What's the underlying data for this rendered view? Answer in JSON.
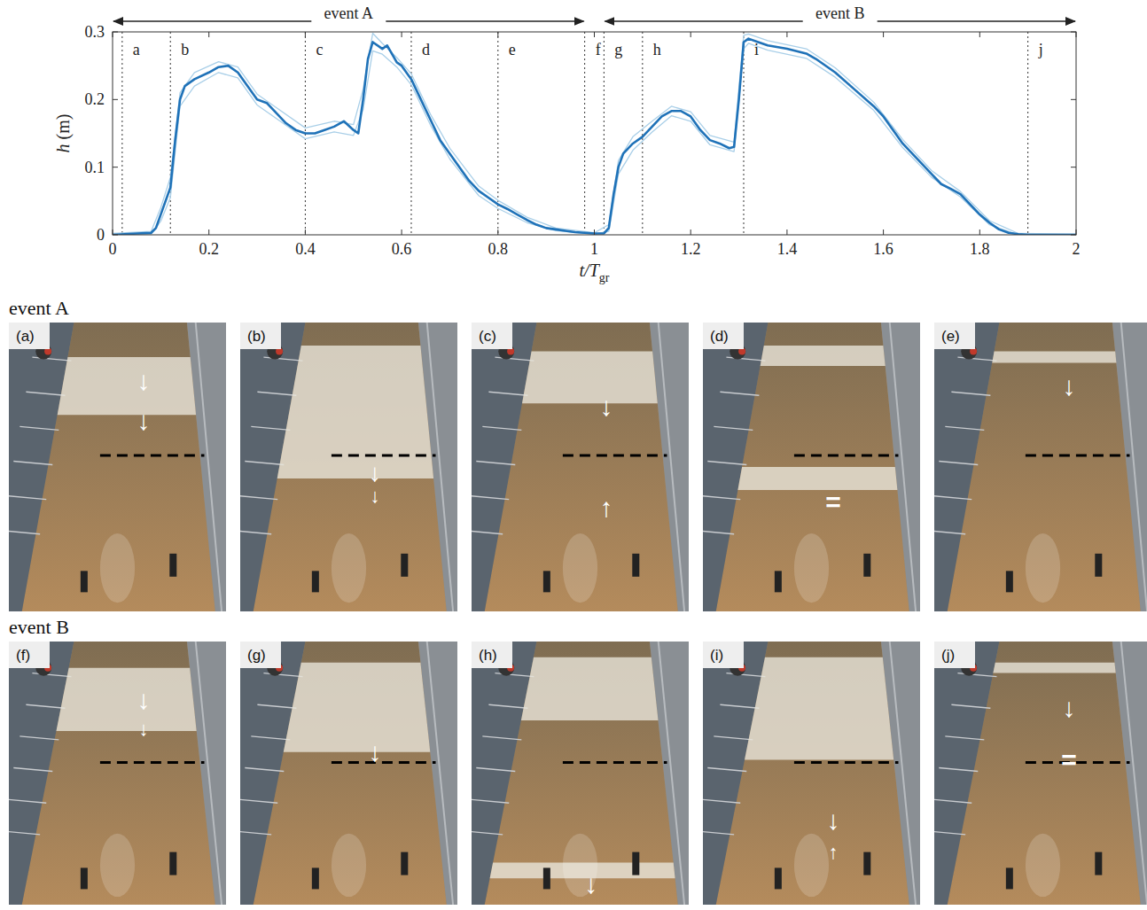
{
  "chart_data": {
    "type": "line",
    "xlabel": {
      "text": "t/T",
      "subscript": "gr"
    },
    "ylabel": "h (m)",
    "xlim": [
      0,
      2
    ],
    "ylim": [
      0,
      0.3
    ],
    "xticks": [
      0,
      0.2,
      0.4,
      0.6,
      0.8,
      1,
      1.2,
      1.4,
      1.6,
      1.8,
      2
    ],
    "yticks": [
      0,
      0.1,
      0.2,
      0.3
    ],
    "grid": false,
    "series": [
      {
        "color": "#a9cfe8",
        "x": [
          0,
          0.08,
          0.1,
          0.12,
          0.14,
          0.17,
          0.22,
          0.26,
          0.3,
          0.34,
          0.4,
          0.46,
          0.5,
          0.52,
          0.54,
          0.56,
          0.59,
          0.62,
          0.66,
          0.7,
          0.76,
          0.8,
          0.86,
          0.92,
          1.0,
          1.03,
          1.05,
          1.08,
          1.12,
          1.16,
          1.2,
          1.24,
          1.29,
          1.31,
          1.32,
          1.36,
          1.44,
          1.5,
          1.58,
          1.64,
          1.7,
          1.76,
          1.82,
          1.88,
          2.0
        ],
        "values": [
          0.002,
          0.005,
          0.04,
          0.085,
          0.21,
          0.24,
          0.256,
          0.248,
          0.208,
          0.188,
          0.158,
          0.168,
          0.163,
          0.215,
          0.298,
          0.283,
          0.262,
          0.238,
          0.178,
          0.128,
          0.072,
          0.051,
          0.026,
          0.01,
          0.003,
          0.015,
          0.11,
          0.145,
          0.168,
          0.19,
          0.182,
          0.147,
          0.137,
          0.295,
          0.297,
          0.287,
          0.275,
          0.247,
          0.196,
          0.141,
          0.095,
          0.064,
          0.021,
          0.002,
          0.001
        ]
      },
      {
        "color": "#a9cfe8",
        "x": [
          0,
          0.08,
          0.1,
          0.12,
          0.14,
          0.17,
          0.22,
          0.26,
          0.3,
          0.34,
          0.4,
          0.46,
          0.5,
          0.52,
          0.54,
          0.56,
          0.59,
          0.62,
          0.66,
          0.7,
          0.76,
          0.8,
          0.86,
          0.92,
          1.0,
          1.03,
          1.05,
          1.08,
          1.12,
          1.16,
          1.2,
          1.24,
          1.29,
          1.31,
          1.32,
          1.36,
          1.44,
          1.5,
          1.58,
          1.64,
          1.7,
          1.76,
          1.82,
          1.88,
          2.0
        ],
        "values": [
          0,
          0.001,
          0.02,
          0.055,
          0.19,
          0.22,
          0.24,
          0.232,
          0.192,
          0.172,
          0.142,
          0.152,
          0.147,
          0.185,
          0.272,
          0.267,
          0.248,
          0.222,
          0.162,
          0.112,
          0.058,
          0.039,
          0.018,
          0.006,
          0.001,
          0.005,
          0.09,
          0.125,
          0.152,
          0.176,
          0.168,
          0.133,
          0.123,
          0.275,
          0.283,
          0.273,
          0.261,
          0.233,
          0.184,
          0.129,
          0.085,
          0.056,
          0.015,
          0,
          0
        ]
      },
      {
        "color": "#1f72b8",
        "x": [
          0,
          0.05,
          0.08,
          0.09,
          0.1,
          0.11,
          0.12,
          0.13,
          0.14,
          0.15,
          0.17,
          0.2,
          0.22,
          0.24,
          0.26,
          0.28,
          0.3,
          0.32,
          0.34,
          0.36,
          0.38,
          0.4,
          0.42,
          0.44,
          0.46,
          0.48,
          0.5,
          0.51,
          0.52,
          0.53,
          0.54,
          0.56,
          0.57,
          0.59,
          0.6,
          0.62,
          0.64,
          0.66,
          0.68,
          0.7,
          0.72,
          0.74,
          0.76,
          0.78,
          0.8,
          0.82,
          0.84,
          0.86,
          0.88,
          0.9,
          0.92,
          0.94,
          0.96,
          0.98,
          1.0,
          1.02,
          1.03,
          1.04,
          1.05,
          1.06,
          1.08,
          1.1,
          1.12,
          1.14,
          1.16,
          1.18,
          1.2,
          1.22,
          1.24,
          1.26,
          1.28,
          1.29,
          1.3,
          1.31,
          1.32,
          1.34,
          1.36,
          1.4,
          1.44,
          1.46,
          1.5,
          1.54,
          1.58,
          1.6,
          1.62,
          1.64,
          1.66,
          1.68,
          1.7,
          1.72,
          1.74,
          1.76,
          1.78,
          1.8,
          1.82,
          1.84,
          1.86,
          1.88,
          1.9,
          2.0
        ],
        "values": [
          0,
          0.002,
          0.003,
          0.01,
          0.03,
          0.05,
          0.07,
          0.14,
          0.2,
          0.22,
          0.23,
          0.24,
          0.248,
          0.25,
          0.24,
          0.22,
          0.2,
          0.195,
          0.18,
          0.165,
          0.155,
          0.15,
          0.15,
          0.155,
          0.16,
          0.168,
          0.155,
          0.15,
          0.2,
          0.26,
          0.285,
          0.275,
          0.28,
          0.255,
          0.25,
          0.23,
          0.2,
          0.17,
          0.14,
          0.12,
          0.1,
          0.08,
          0.065,
          0.055,
          0.045,
          0.038,
          0.03,
          0.022,
          0.015,
          0.01,
          0.008,
          0.006,
          0.004,
          0.003,
          0.002,
          0.002,
          0.01,
          0.06,
          0.1,
          0.12,
          0.135,
          0.145,
          0.16,
          0.175,
          0.183,
          0.183,
          0.175,
          0.155,
          0.14,
          0.135,
          0.128,
          0.13,
          0.2,
          0.285,
          0.29,
          0.285,
          0.28,
          0.275,
          0.268,
          0.26,
          0.24,
          0.215,
          0.19,
          0.175,
          0.155,
          0.135,
          0.12,
          0.105,
          0.09,
          0.075,
          0.068,
          0.06,
          0.045,
          0.03,
          0.018,
          0.008,
          0.003,
          0.001,
          0,
          0
        ]
      }
    ],
    "markers": [
      {
        "label": "a",
        "x": 0.02
      },
      {
        "label": "b",
        "x": 0.12
      },
      {
        "label": "c",
        "x": 0.4
      },
      {
        "label": "d",
        "x": 0.62
      },
      {
        "label": "e",
        "x": 0.8
      },
      {
        "label": "f",
        "x": 0.98
      },
      {
        "label": "g",
        "x": 1.02
      },
      {
        "label": "h",
        "x": 1.1
      },
      {
        "label": "i",
        "x": 1.31
      },
      {
        "label": "j",
        "x": 1.9
      }
    ],
    "events": [
      {
        "label": "event A",
        "start": 0,
        "end": 0.98
      },
      {
        "label": "event B",
        "start": 1.02,
        "end": 2
      }
    ]
  },
  "photos": {
    "rows": [
      {
        "label": "event A",
        "panels": [
          {
            "label": "(a)",
            "marks": [
              "↓",
              "↓"
            ]
          },
          {
            "label": "(b)",
            "marks": [
              "↓",
              "↓"
            ]
          },
          {
            "label": "(c)",
            "marks": [
              "↓",
              "↑"
            ]
          },
          {
            "label": "(d)",
            "marks": [
              "="
            ]
          },
          {
            "label": "(e)",
            "marks": [
              "↓"
            ]
          }
        ]
      },
      {
        "label": "event B",
        "panels": [
          {
            "label": "(f)",
            "marks": [
              "↓",
              "↓"
            ]
          },
          {
            "label": "(g)",
            "marks": [
              "↓"
            ]
          },
          {
            "label": "(h)",
            "marks": [
              "↓"
            ]
          },
          {
            "label": "(i)",
            "marks": [
              "↓",
              "↑"
            ]
          },
          {
            "label": "(j)",
            "marks": [
              "↓",
              "="
            ]
          }
        ]
      }
    ]
  }
}
